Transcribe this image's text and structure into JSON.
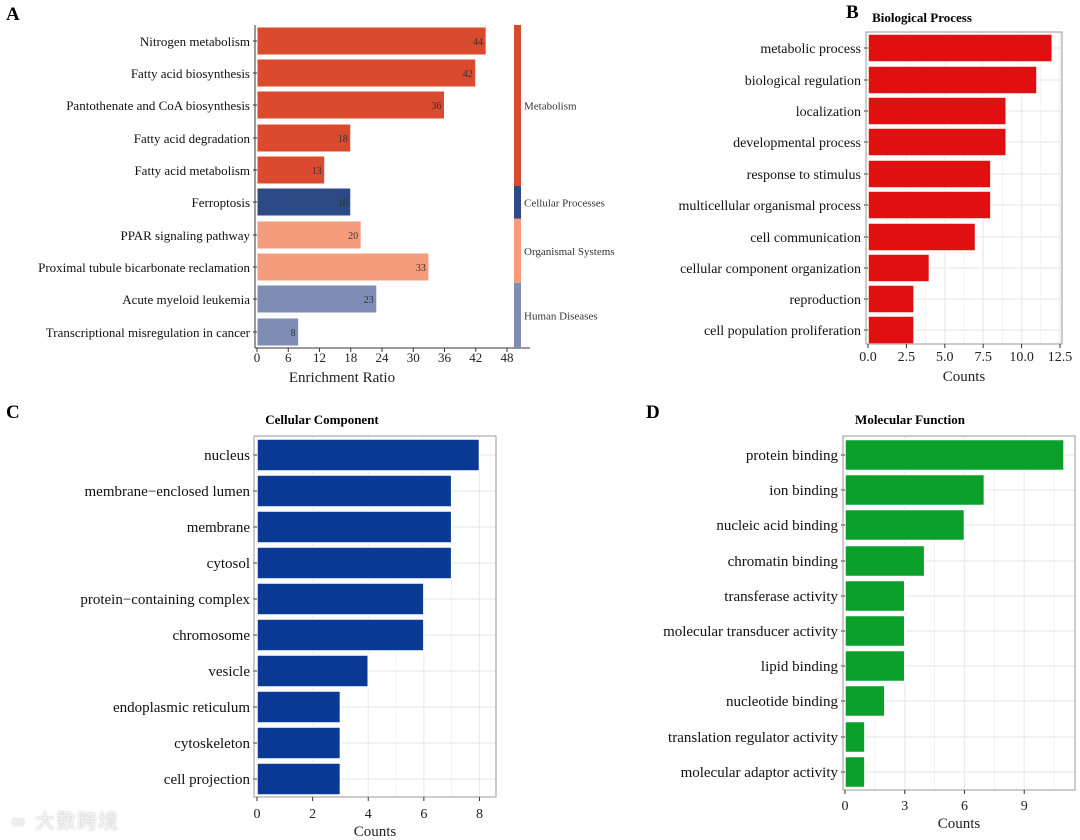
{
  "watermark": "大数跨境",
  "chart_data": [
    {
      "panel": "A",
      "type": "bar",
      "orientation": "horizontal",
      "title": "",
      "xlabel": "Enrichment Ratio",
      "ylabel": "",
      "xlim": [
        0,
        48
      ],
      "xticks": [
        0,
        6,
        12,
        18,
        24,
        30,
        36,
        42,
        48
      ],
      "grid": false,
      "categories": [
        "Nitrogen metabolism",
        "Fatty acid biosynthesis",
        "Pantothenate and CoA biosynthesis",
        "Fatty acid degradation",
        "Fatty acid metabolism",
        "Ferroptosis",
        "PPAR signaling pathway",
        "Proximal tubule bicarbonate reclamation",
        "Acute myeloid leukemia",
        "Transcriptional misregulation in cancer"
      ],
      "values": [
        44,
        42,
        36,
        18,
        13,
        18,
        20,
        33,
        23,
        8
      ],
      "data_labels": [
        "44",
        "42",
        "36",
        "18",
        "13",
        "18",
        "20",
        "33",
        "23",
        "8"
      ],
      "groups": [
        {
          "name": "Metabolism",
          "count": 5,
          "color": "#d94a2e"
        },
        {
          "name": "Cellular Processes",
          "count": 1,
          "color": "#2c4a86"
        },
        {
          "name": "Organismal Systems",
          "count": 2,
          "color": "#f59c7c"
        },
        {
          "name": "Human Diseases",
          "count": 2,
          "color": "#7d8db5"
        }
      ]
    },
    {
      "panel": "B",
      "type": "bar",
      "orientation": "horizontal",
      "title": "Biological Process",
      "xlabel": "Counts",
      "xlim": [
        0,
        12.5
      ],
      "xticks": [
        "0.0",
        "2.5",
        "5.0",
        "7.5",
        "10.0",
        "12.5"
      ],
      "grid": true,
      "color": "#e01010",
      "categories": [
        "metabolic process",
        "biological regulation",
        "localization",
        "developmental process",
        "response to stimulus",
        "multicellular organismal process",
        "cell communication",
        "cellular component organization",
        "reproduction",
        "cell population proliferation"
      ],
      "values": [
        12,
        11,
        9,
        9,
        8,
        8,
        7,
        4,
        3,
        3
      ]
    },
    {
      "panel": "C",
      "type": "bar",
      "orientation": "horizontal",
      "title": "Cellular Component",
      "xlabel": "Counts",
      "xlim": [
        0,
        8.4
      ],
      "xticks": [
        "0",
        "2",
        "4",
        "6",
        "8"
      ],
      "grid": true,
      "color": "#0b3a94",
      "categories": [
        "nucleus",
        "membrane−enclosed lumen",
        "membrane",
        "cytosol",
        "protein−containing complex",
        "chromosome",
        "vesicle",
        "endoplasmic reticulum",
        "cytoskeleton",
        "cell projection"
      ],
      "values": [
        8,
        7,
        7,
        7,
        6,
        6,
        4,
        3,
        3,
        3
      ]
    },
    {
      "panel": "D",
      "type": "bar",
      "orientation": "horizontal",
      "title": "Molecular Function",
      "xlabel": "Counts",
      "xlim": [
        0,
        11.5
      ],
      "xticks": [
        "0",
        "3",
        "6",
        "9"
      ],
      "grid": true,
      "color": "#0aa02a",
      "categories": [
        "protein binding",
        "ion binding",
        "nucleic acid binding",
        "chromatin binding",
        "transferase activity",
        "molecular transducer activity",
        "lipid binding",
        "nucleotide binding",
        "translation regulator activity",
        "molecular adaptor activity"
      ],
      "values": [
        11,
        7,
        6,
        4,
        3,
        3,
        3,
        2,
        1,
        1
      ]
    }
  ]
}
